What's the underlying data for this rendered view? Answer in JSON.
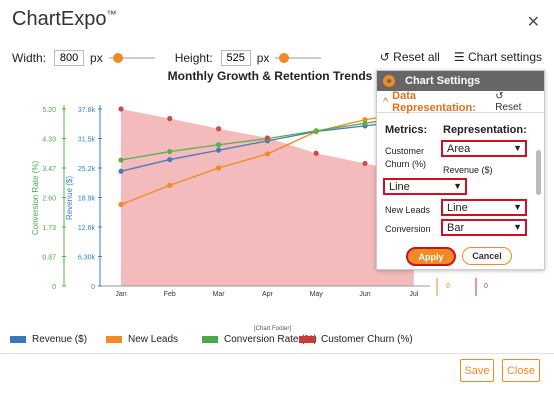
{
  "app": {
    "title": "ChartExpo",
    "tm": "™"
  },
  "size": {
    "width_label": "Width:",
    "width_value": "800",
    "height_label": "Height:",
    "height_value": "525",
    "unit": "px"
  },
  "toolbar": {
    "reset_all": "Reset all",
    "chart_settings": "Chart settings"
  },
  "chart_data": {
    "type": "line",
    "title": "Monthly Growth & Retention Trends",
    "categories": [
      "Jan",
      "Feb",
      "Mar",
      "Apr",
      "May",
      "Jun",
      "Jul"
    ],
    "series": [
      {
        "name": "Revenue ($)",
        "color": "#4a7ab8",
        "values": [
          24500,
          27000,
          29000,
          31000,
          33000,
          34200,
          35400
        ]
      },
      {
        "name": "New Leads",
        "color": "#f08a24",
        "values": [
          17400,
          21500,
          25200,
          28200,
          33000,
          35500,
          37200
        ]
      },
      {
        "name": "Conversion Rate (%)",
        "color": "#5ab04a",
        "values": [
          3.7,
          3.95,
          4.15,
          4.33,
          4.56,
          4.78,
          5.0
        ]
      },
      {
        "name": "Customer Churn (%)",
        "color": "#e07878",
        "values": [
          5.2,
          4.92,
          4.62,
          4.35,
          3.9,
          3.6,
          3.3
        ]
      }
    ],
    "left_axis_conversion": {
      "label": "Conversion Rate (%)",
      "ticks": [
        "5.20",
        "4.33",
        "3.47",
        "2.60",
        "1.73",
        "0.87",
        "0"
      ],
      "color": "#4aa84a"
    },
    "left_axis_revenue": {
      "label": "Revenue ($)",
      "ticks": [
        "37.8k",
        "31.5k",
        "25.2k",
        "18.9k",
        "12.6k",
        "6.30k",
        "0"
      ],
      "color": "#3a80c8"
    },
    "right_axis_leads_zero": "0",
    "right_axis_churn_zero": "0"
  },
  "footer_label": "[Chart Footer]",
  "legend": [
    {
      "name": "Revenue ($)",
      "color": "#3a78b8"
    },
    {
      "name": "New Leads",
      "color": "#f08a24"
    },
    {
      "name": "Conversion Rate (%)",
      "color": "#4aa84a"
    },
    {
      "name": "Customer Churn (%)",
      "color": "#cc3a3a"
    }
  ],
  "settings": {
    "header": "Chart Settings",
    "section": "Data Representation:",
    "reset": "Reset",
    "metrics_head": "Metrics:",
    "rep_head": "Representation:",
    "rows": [
      {
        "metric": "Customer Churn (%)",
        "rep": "Area"
      },
      {
        "metric": "Revenue ($)",
        "rep": "Line"
      },
      {
        "metric": "New Leads",
        "rep": "Line"
      },
      {
        "metric": "Conversion",
        "rep": "Bar"
      }
    ],
    "apply": "Apply",
    "cancel": "Cancel"
  },
  "footer": {
    "save": "Save",
    "close": "Close"
  }
}
